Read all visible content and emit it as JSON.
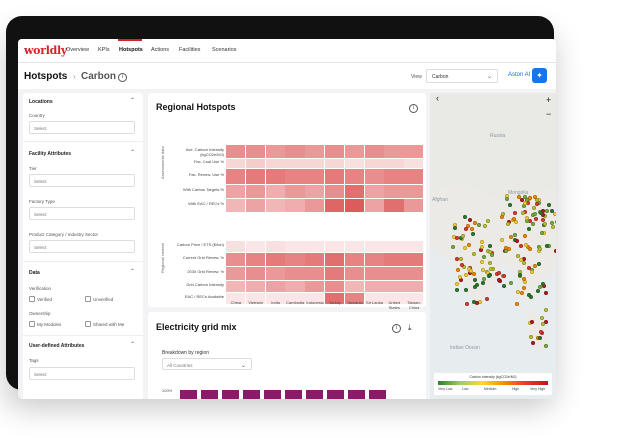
{
  "nav": {
    "logo": "worldly",
    "items": [
      "Overview",
      "KPIs",
      "Hotspots",
      "Actions",
      "Facilities",
      "Scenarios"
    ],
    "active": "Hotspots"
  },
  "header": {
    "title": "Hotspots",
    "subtitle": "Carbon",
    "view_label": "View",
    "view_value": "Carbon",
    "ai_label": "Aston AI"
  },
  "sidebar": {
    "locations_title": "Locations",
    "country_label": "Country",
    "country_placeholder": "Select",
    "facility_title": "Facility Attributes",
    "tier_label": "Tier",
    "tier_placeholder": "Select",
    "factory_type_label": "Factory Type",
    "factory_type_placeholder": "Select",
    "product_label": "Product Category / Industry Sector",
    "product_placeholder": "Select",
    "data_title": "Data",
    "verification_label": "Verification",
    "verified_label": "Verified",
    "unverified_label": "Unverified",
    "ownership_label": "Ownership",
    "my_modules_label": "My Modules",
    "shared_label": "Shared with Me",
    "user_defined_title": "User-defined Attributes",
    "tags_label": "Tags",
    "tags_placeholder": "Select"
  },
  "hotspots": {
    "title": "Regional Hotspots",
    "group1_label": "Assessments data",
    "group2_label": "Regional context",
    "rows_group1": [
      "Ave. Carbon Intensity (kgCO2e/MJ)",
      "Fac. Coal Use %",
      "Fac. Renew. Use %",
      "With Carbon Targets %",
      "With EAC / RECs %"
    ],
    "rows_group2": [
      "Carbon Price / ETS ($/ton)",
      "Current Grid Renew. %",
      "2030 Grid Renew. %",
      "Grid Carbon Intensity",
      "EAC / RECs Available"
    ],
    "columns": [
      "China",
      "Vietnam",
      "India",
      "Cambodia",
      "Indonesia",
      "Turkey",
      "Tanzania",
      "Sri Lanka",
      "United States",
      "Taiwan, China"
    ]
  },
  "grid_mix": {
    "title": "Electricity grid mix",
    "breakdown_label": "Breakdown by region",
    "region_value": "All Countries",
    "y_tick": "100%"
  },
  "map": {
    "label_russia": "Russia",
    "label_mongolia": "Mongolia",
    "label_afghanistan": "Afghan",
    "label_ocean": "Indian Ocean",
    "zoom_in": "+",
    "zoom_out": "−",
    "back": "‹",
    "legend_title": "Carbon intensity (kgCO2e/MJ)",
    "legend_labels": [
      "Very Low",
      "Low",
      "Medium",
      "High",
      "Very High"
    ]
  },
  "colors": {
    "brand": "#d8202a",
    "accent": "#1a73e8",
    "bar": "#8b1a6b"
  }
}
